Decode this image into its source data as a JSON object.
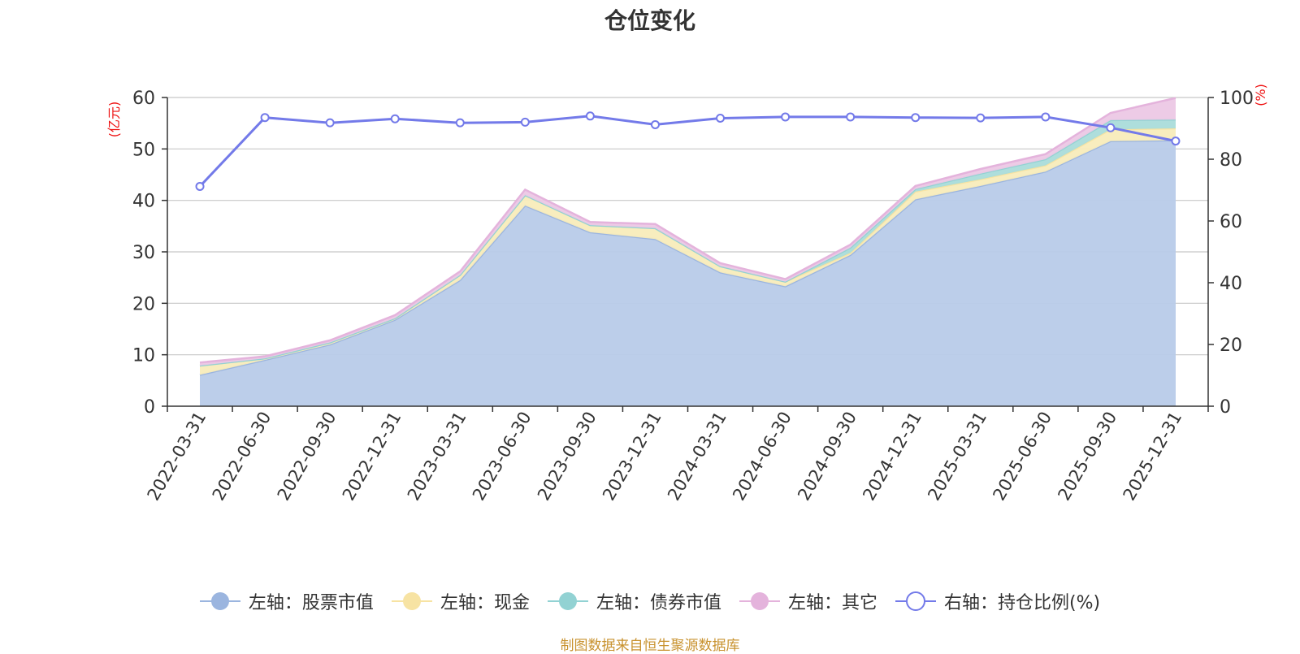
{
  "title": "仓位变化",
  "footer": "制图数据来自恒生聚源数据库",
  "chart_data": {
    "type": "area",
    "title": "仓位变化",
    "x": [
      "2022-03-31",
      "2022-06-30",
      "2022-09-30",
      "2022-12-31",
      "2023-03-31",
      "2023-06-30",
      "2023-09-30",
      "2023-12-31",
      "2024-03-31",
      "2024-06-30",
      "2024-09-30",
      "2024-12-31",
      "2025-03-31",
      "2025-06-30",
      "2025-09-30",
      "2025-12-31"
    ],
    "y_left_label": "(亿元)",
    "y_right_label": "(%)",
    "y_left_range": [
      0,
      60
    ],
    "y_left_ticks": [
      0,
      10,
      20,
      30,
      40,
      50,
      60
    ],
    "y_right_range": [
      0,
      100
    ],
    "y_right_ticks": [
      0,
      20,
      40,
      60,
      80,
      100
    ],
    "grid": true,
    "legend_position": "bottom",
    "stacked_series": [
      {
        "name": "左轴：股票市值",
        "color": "#9bb5df",
        "fill": "#b8cbe9",
        "values": [
          6.1,
          9.0,
          12.0,
          16.8,
          24.5,
          39.0,
          33.8,
          32.5,
          26.0,
          23.3,
          29.4,
          40.2,
          42.8,
          45.6,
          51.5,
          51.7
        ]
      },
      {
        "name": "左轴：现金",
        "color": "#f7e3a3",
        "fill": "#f8ecbb",
        "values": [
          1.8,
          0.3,
          0.4,
          0.3,
          1.0,
          2.0,
          1.4,
          2.1,
          1.2,
          0.9,
          0.4,
          1.5,
          1.3,
          1.2,
          2.3,
          2.3
        ]
      },
      {
        "name": "左轴：债券市值",
        "color": "#92d2d3",
        "fill": "#aadcda",
        "values": [
          0.0,
          0.0,
          0.0,
          0.0,
          0.0,
          0.0,
          0.0,
          0.0,
          0.0,
          0.0,
          1.0,
          0.5,
          1.1,
          1.2,
          1.8,
          1.7
        ]
      },
      {
        "name": "左轴：其它",
        "color": "#e4b3dc",
        "fill": "#ecc8e5",
        "values": [
          0.6,
          0.4,
          0.4,
          0.6,
          0.7,
          1.1,
          0.6,
          0.8,
          0.6,
          0.5,
          0.6,
          0.6,
          0.9,
          1.0,
          1.4,
          4.2
        ]
      }
    ],
    "line_series": {
      "name": "右轴：持仓比例(%)",
      "color": "#737ae9",
      "values": [
        71.2,
        93.5,
        91.8,
        93.1,
        91.8,
        92.0,
        94.0,
        91.2,
        93.3,
        93.7,
        93.7,
        93.5,
        93.4,
        93.7,
        90.2,
        85.9
      ]
    }
  },
  "legend": [
    {
      "label": "左轴：股票市值",
      "icon": "filled-circle-line",
      "color": "#9bb5df"
    },
    {
      "label": "左轴：现金",
      "icon": "filled-circle-line",
      "color": "#f7e3a3"
    },
    {
      "label": "左轴：债券市值",
      "icon": "filled-circle-line",
      "color": "#92d2d3"
    },
    {
      "label": "左轴：其它",
      "icon": "filled-circle-line",
      "color": "#e4b3dc"
    },
    {
      "label": "右轴：持仓比例(%)",
      "icon": "hollow-circle-line",
      "color": "#737ae9"
    }
  ]
}
